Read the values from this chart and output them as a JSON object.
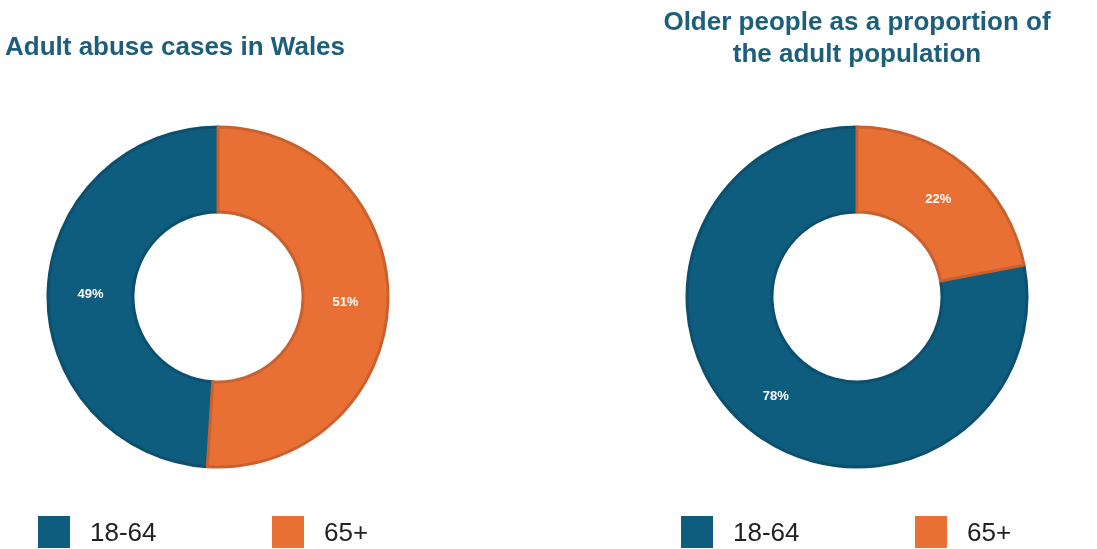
{
  "chart_data": [
    {
      "type": "donut",
      "title": "Adult abuse cases in Wales",
      "categories": [
        "18-64",
        "65+"
      ],
      "values": [
        49,
        51
      ],
      "colors": [
        "#0e5c7e",
        "#e87035"
      ],
      "value_labels": [
        "49%",
        "51%"
      ],
      "legend": "bottom"
    },
    {
      "type": "donut",
      "title": "Older people as a proportion of\nthe adult population",
      "categories": [
        "18-64",
        "65+"
      ],
      "values": [
        78,
        22
      ],
      "colors": [
        "#0e5c7e",
        "#e87035"
      ],
      "value_labels": [
        "78%",
        "22%"
      ],
      "legend": "bottom"
    }
  ]
}
